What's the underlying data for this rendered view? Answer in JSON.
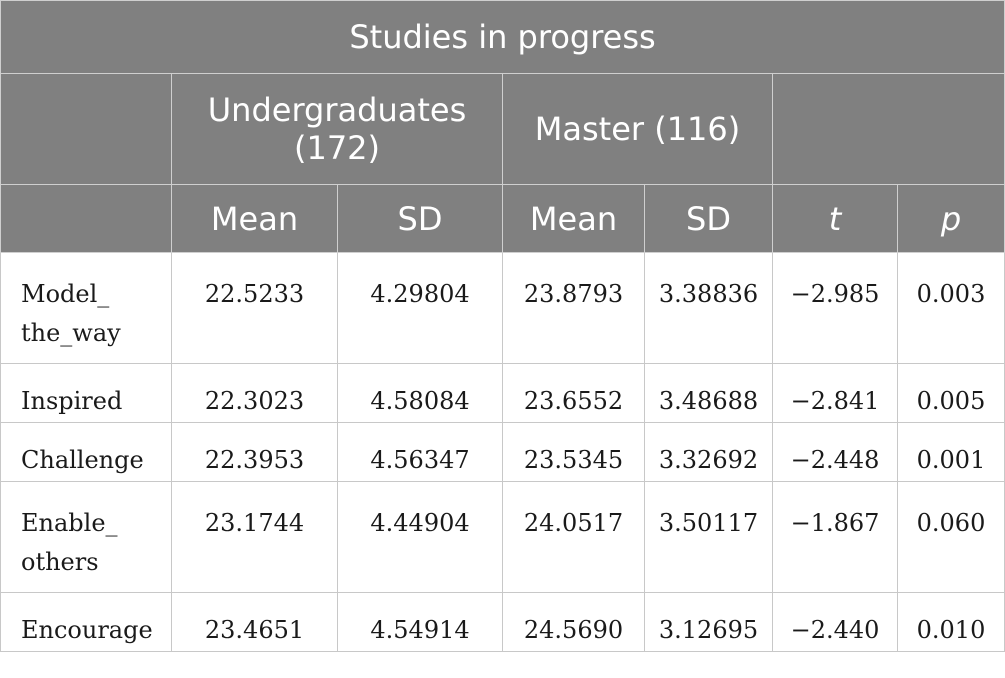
{
  "table": {
    "title": "Studies in progress",
    "groups": {
      "undergraduates": "Undergraduates (172)",
      "master": "Master (116)"
    },
    "columns": {
      "ug_mean": "Mean",
      "ug_sd": "SD",
      "ms_mean": "Mean",
      "ms_sd": "SD",
      "t": "t",
      "p": "p"
    },
    "rows": [
      {
        "label": "Model_ the_way",
        "ug_mean": "22.5233",
        "ug_sd": "4.29804",
        "ms_mean": "23.8793",
        "ms_sd": "3.38836",
        "t": "−2.985",
        "p": "0.003"
      },
      {
        "label": "Inspired",
        "ug_mean": "22.3023",
        "ug_sd": "4.58084",
        "ms_mean": "23.6552",
        "ms_sd": "3.48688",
        "t": "−2.841",
        "p": "0.005"
      },
      {
        "label": "Challenge",
        "ug_mean": "22.3953",
        "ug_sd": "4.56347",
        "ms_mean": "23.5345",
        "ms_sd": "3.32692",
        "t": "−2.448",
        "p": "0.001"
      },
      {
        "label": "Enable_ others",
        "ug_mean": "23.1744",
        "ug_sd": "4.44904",
        "ms_mean": "24.0517",
        "ms_sd": "3.50117",
        "t": "−1.867",
        "p": "0.060"
      },
      {
        "label": "Encourage",
        "ug_mean": "23.4651",
        "ug_sd": "4.54914",
        "ms_mean": "24.5690",
        "ms_sd": "3.12695",
        "t": "−2.440",
        "p": "0.010"
      }
    ]
  }
}
